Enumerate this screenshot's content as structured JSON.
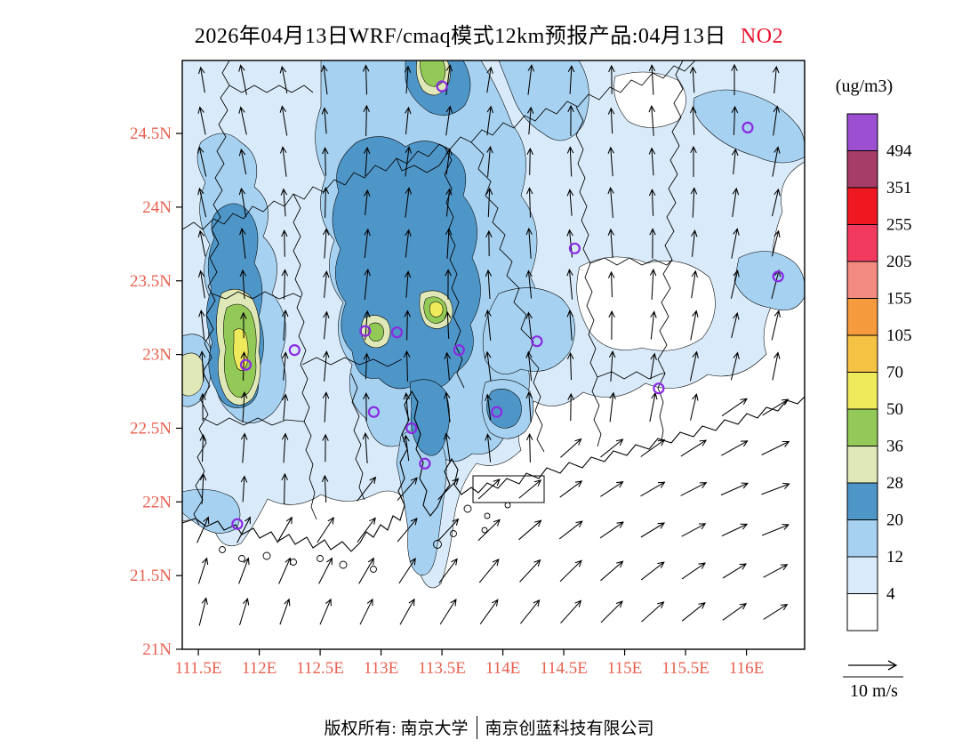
{
  "title": {
    "main": "2026年04月13日WRF/cmaq模式12km预报产品:04月13日",
    "pollutant": "NO2",
    "pollutant_color": "#e8112d"
  },
  "colorbar": {
    "unit": "(ug/m3)",
    "values_top_to_bottom": [
      "494",
      "351",
      "255",
      "205",
      "155",
      "105",
      "70",
      "50",
      "36",
      "28",
      "20",
      "12",
      "4"
    ],
    "cell_colors_top_to_bottom": [
      "#9d4fd2",
      "#a63d68",
      "#ef1820",
      "#f23a5f",
      "#f28a80",
      "#f59b3e",
      "#f5c243",
      "#efe95c",
      "#93c956",
      "#dfe8b6",
      "#4f96c8",
      "#a6d1f0",
      "#d9ebfa",
      "#ffffff"
    ]
  },
  "axes": {
    "lat_ticks": [
      "24.5N",
      "24N",
      "23.5N",
      "23N",
      "22.5N",
      "22N",
      "21.5N",
      "21N"
    ],
    "lon_ticks": [
      "111.5E",
      "112E",
      "112.5E",
      "113E",
      "113.5E",
      "114E",
      "114.5E",
      "115E",
      "115.5E",
      "116E"
    ],
    "label_color": "#e8604f"
  },
  "wind_legend": {
    "label": "10 m/s"
  },
  "footer": {
    "left": "版权所有: 南京大学",
    "right": "南京创蓝科技有限公司"
  },
  "map": {
    "station_marker_color": "#8a2be2",
    "stations_lon_lat": [
      [
        113.5,
        24.82
      ],
      [
        116.01,
        24.54
      ],
      [
        114.59,
        23.72
      ],
      [
        116.26,
        23.53
      ],
      [
        112.87,
        23.16
      ],
      [
        113.13,
        23.15
      ],
      [
        113.64,
        23.03
      ],
      [
        112.29,
        23.03
      ],
      [
        111.89,
        22.93
      ],
      [
        114.28,
        23.09
      ],
      [
        115.28,
        22.77
      ],
      [
        112.94,
        22.61
      ],
      [
        113.25,
        22.5
      ],
      [
        113.95,
        22.61
      ],
      [
        113.36,
        22.26
      ],
      [
        111.82,
        21.85
      ]
    ]
  },
  "chart_data": {
    "type": "contour_map",
    "title": "2026年04月13日WRF/cmaq模式12km预报产品:04月13日 NO2",
    "pollutant": "NO2",
    "unit": "ug/m3",
    "level_boundaries": [
      4,
      12,
      20,
      28,
      36,
      50,
      70,
      105,
      155,
      205,
      255,
      351,
      494
    ],
    "lon_tick_range": [
      "111.5E",
      "116E"
    ],
    "lat_tick_range": [
      "21N",
      "24.5N"
    ],
    "wind_reference": "10 m/s",
    "legend_position": "right"
  }
}
